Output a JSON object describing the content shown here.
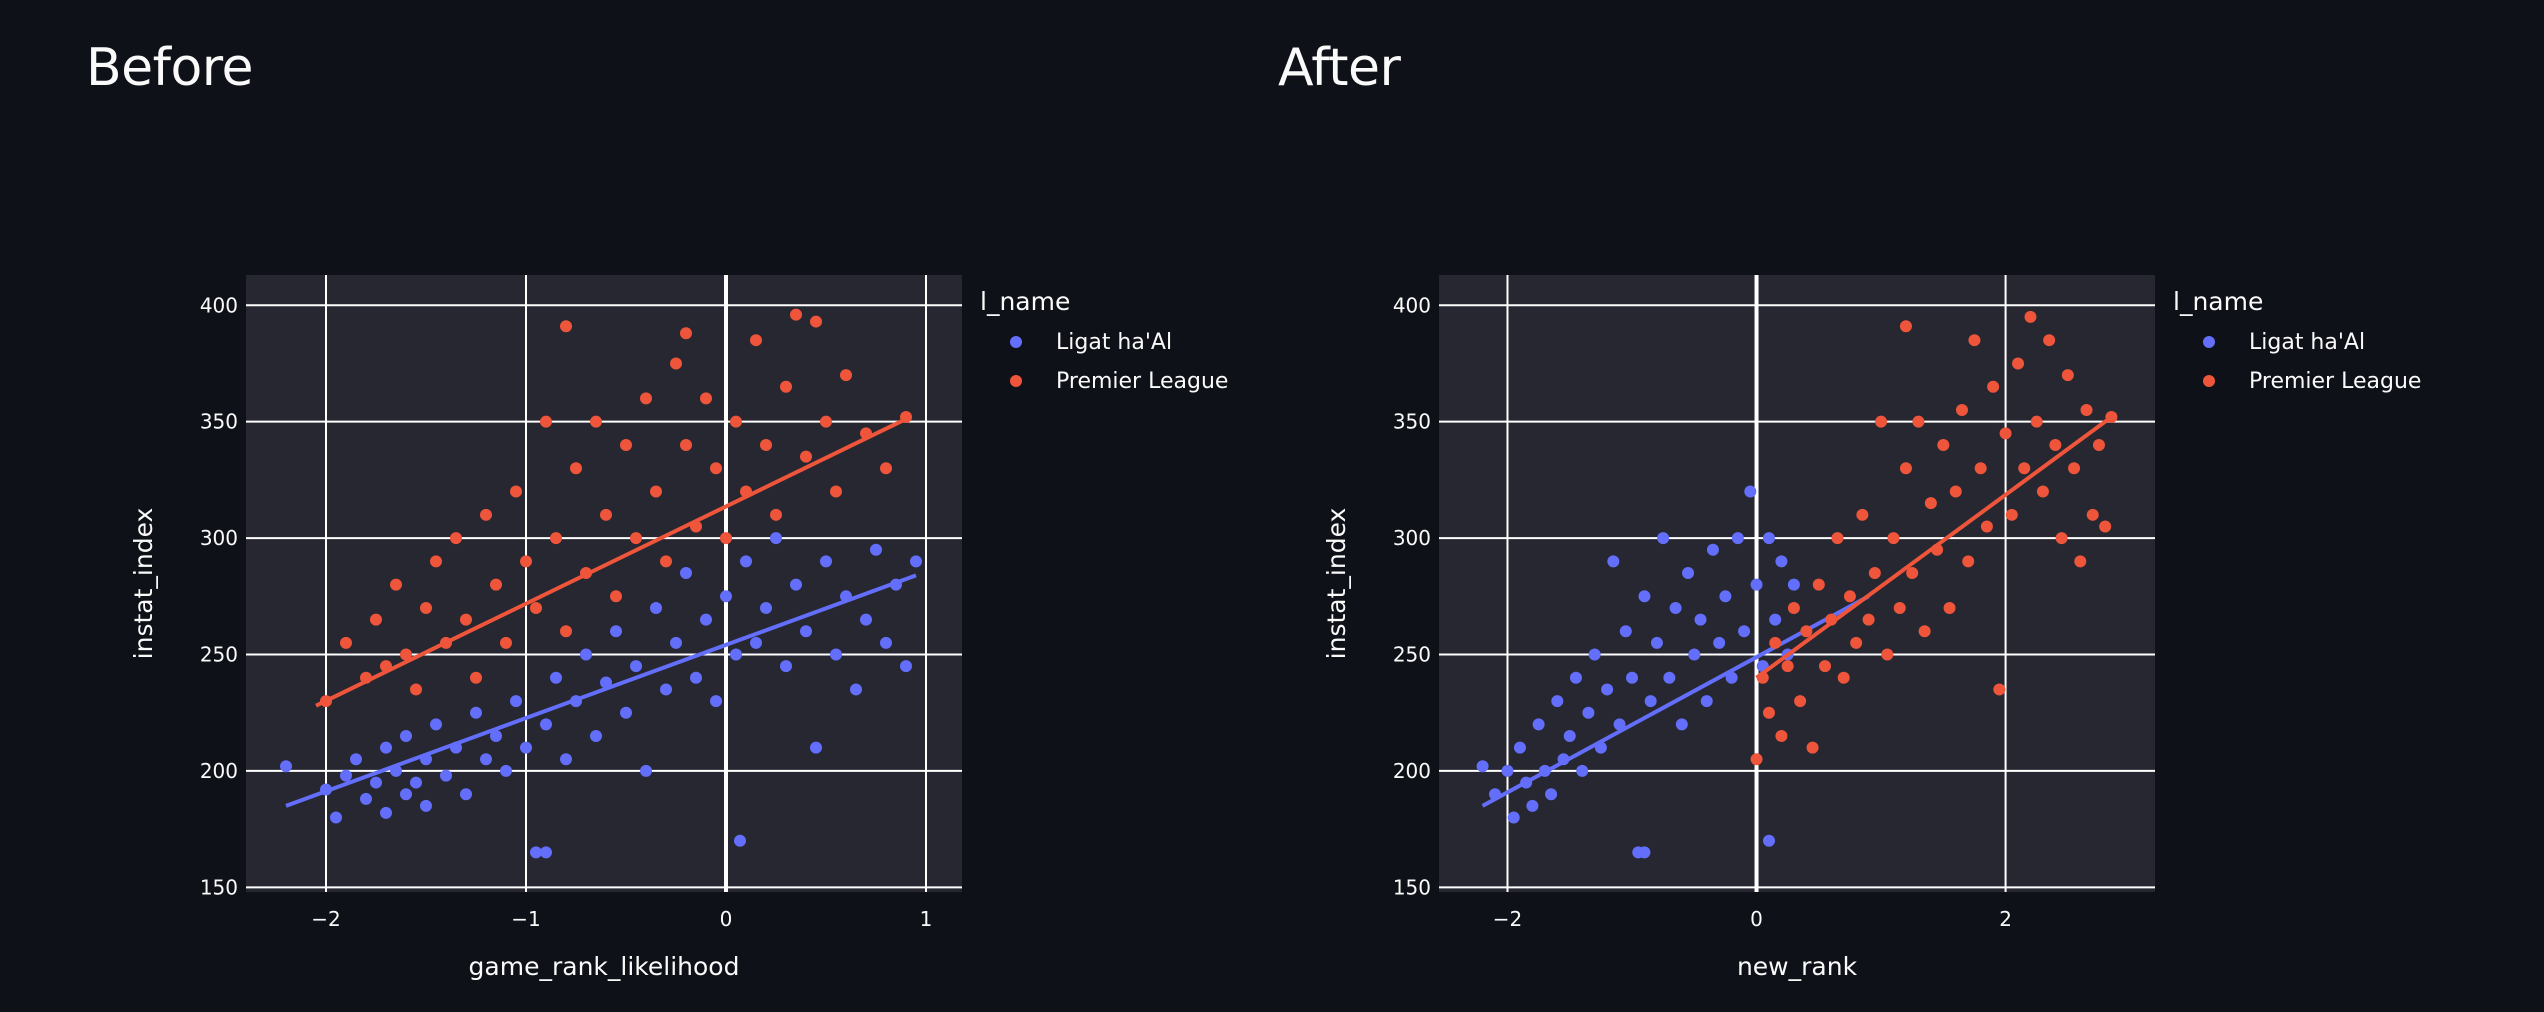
{
  "panels": [
    {
      "title": "Before"
    },
    {
      "title": "After"
    }
  ],
  "colors": {
    "background": "#0e1117",
    "plot_background": "#262730",
    "grid": "#ffffff",
    "ligat": "#636efa",
    "premier": "#ef553b"
  },
  "chart_data": [
    {
      "type": "scatter",
      "xlabel": "game_rank_likelihood",
      "ylabel": "instat_index",
      "xlim": [
        -2.4,
        1.18
      ],
      "ylim": [
        148,
        413
      ],
      "xticks": [
        -2,
        -1,
        0,
        1
      ],
      "xtick_labels": [
        "−2",
        "−1",
        "0",
        "1"
      ],
      "yticks": [
        150,
        200,
        250,
        300,
        350,
        400
      ],
      "legend": {
        "title": "l_name",
        "placement": "right"
      },
      "grid": true,
      "series": [
        {
          "name": "Ligat ha'Al",
          "color": "#636efa",
          "trendline": [
            [
              -2.2,
              185
            ],
            [
              0.95,
              284
            ]
          ],
          "points": [
            [
              -2.2,
              202
            ],
            [
              -2.0,
              192
            ],
            [
              -1.95,
              180
            ],
            [
              -1.9,
              198
            ],
            [
              -1.85,
              205
            ],
            [
              -1.8,
              188
            ],
            [
              -1.75,
              195
            ],
            [
              -1.7,
              182
            ],
            [
              -1.7,
              210
            ],
            [
              -1.65,
              200
            ],
            [
              -1.6,
              190
            ],
            [
              -1.6,
              215
            ],
            [
              -1.55,
              195
            ],
            [
              -1.5,
              205
            ],
            [
              -1.5,
              185
            ],
            [
              -1.45,
              220
            ],
            [
              -1.4,
              198
            ],
            [
              -1.35,
              210
            ],
            [
              -1.3,
              190
            ],
            [
              -1.25,
              225
            ],
            [
              -1.2,
              205
            ],
            [
              -1.15,
              215
            ],
            [
              -1.1,
              200
            ],
            [
              -1.05,
              230
            ],
            [
              -1.0,
              210
            ],
            [
              -0.95,
              165
            ],
            [
              -0.9,
              165
            ],
            [
              -0.9,
              220
            ],
            [
              -0.85,
              240
            ],
            [
              -0.8,
              205
            ],
            [
              -0.75,
              230
            ],
            [
              -0.7,
              250
            ],
            [
              -0.65,
              215
            ],
            [
              -0.6,
              238
            ],
            [
              -0.55,
              260
            ],
            [
              -0.5,
              225
            ],
            [
              -0.45,
              245
            ],
            [
              -0.4,
              200
            ],
            [
              -0.35,
              270
            ],
            [
              -0.3,
              235
            ],
            [
              -0.25,
              255
            ],
            [
              -0.2,
              285
            ],
            [
              -0.15,
              240
            ],
            [
              -0.1,
              265
            ],
            [
              -0.05,
              230
            ],
            [
              0.0,
              275
            ],
            [
              0.05,
              250
            ],
            [
              0.07,
              170
            ],
            [
              0.1,
              290
            ],
            [
              0.15,
              255
            ],
            [
              0.2,
              270
            ],
            [
              0.25,
              300
            ],
            [
              0.3,
              245
            ],
            [
              0.35,
              280
            ],
            [
              0.4,
              260
            ],
            [
              0.45,
              210
            ],
            [
              0.5,
              290
            ],
            [
              0.55,
              250
            ],
            [
              0.6,
              275
            ],
            [
              0.65,
              235
            ],
            [
              0.7,
              265
            ],
            [
              0.75,
              295
            ],
            [
              0.8,
              255
            ],
            [
              0.85,
              280
            ],
            [
              0.9,
              245
            ],
            [
              0.95,
              290
            ]
          ]
        },
        {
          "name": "Premier League",
          "color": "#ef553b",
          "trendline": [
            [
              -2.05,
              228
            ],
            [
              0.92,
              352
            ]
          ],
          "points": [
            [
              -2.0,
              230
            ],
            [
              -1.9,
              255
            ],
            [
              -1.8,
              240
            ],
            [
              -1.75,
              265
            ],
            [
              -1.7,
              245
            ],
            [
              -1.65,
              280
            ],
            [
              -1.6,
              250
            ],
            [
              -1.55,
              235
            ],
            [
              -1.5,
              270
            ],
            [
              -1.45,
              290
            ],
            [
              -1.4,
              255
            ],
            [
              -1.35,
              300
            ],
            [
              -1.3,
              265
            ],
            [
              -1.25,
              240
            ],
            [
              -1.2,
              310
            ],
            [
              -1.15,
              280
            ],
            [
              -1.1,
              255
            ],
            [
              -1.05,
              320
            ],
            [
              -1.0,
              290
            ],
            [
              -0.95,
              270
            ],
            [
              -0.9,
              350
            ],
            [
              -0.85,
              300
            ],
            [
              -0.8,
              260
            ],
            [
              -0.8,
              391
            ],
            [
              -0.75,
              330
            ],
            [
              -0.7,
              285
            ],
            [
              -0.65,
              350
            ],
            [
              -0.6,
              310
            ],
            [
              -0.55,
              275
            ],
            [
              -0.5,
              340
            ],
            [
              -0.45,
              300
            ],
            [
              -0.4,
              360
            ],
            [
              -0.35,
              320
            ],
            [
              -0.3,
              290
            ],
            [
              -0.25,
              375
            ],
            [
              -0.2,
              340
            ],
            [
              -0.2,
              388
            ],
            [
              -0.15,
              305
            ],
            [
              -0.1,
              360
            ],
            [
              -0.05,
              330
            ],
            [
              0.0,
              300
            ],
            [
              0.05,
              350
            ],
            [
              0.1,
              320
            ],
            [
              0.15,
              385
            ],
            [
              0.2,
              340
            ],
            [
              0.25,
              310
            ],
            [
              0.3,
              365
            ],
            [
              0.35,
              396
            ],
            [
              0.4,
              335
            ],
            [
              0.45,
              393
            ],
            [
              0.5,
              350
            ],
            [
              0.55,
              320
            ],
            [
              0.6,
              370
            ],
            [
              0.7,
              345
            ],
            [
              0.8,
              330
            ],
            [
              0.9,
              352
            ]
          ]
        }
      ]
    },
    {
      "type": "scatter",
      "xlabel": "new_rank",
      "ylabel": "instat_index",
      "xlim": [
        -2.55,
        3.2
      ],
      "ylim": [
        148,
        413
      ],
      "xticks": [
        -2,
        0,
        2
      ],
      "xtick_labels": [
        "−2",
        "0",
        "2"
      ],
      "yticks": [
        150,
        200,
        250,
        300,
        350,
        400
      ],
      "legend": {
        "title": "l_name",
        "placement": "right"
      },
      "grid": true,
      "series": [
        {
          "name": "Ligat ha'Al",
          "color": "#636efa",
          "trendline": [
            [
              -2.2,
              185
            ],
            [
              0.9,
              275
            ]
          ],
          "points": [
            [
              -2.2,
              202
            ],
            [
              -2.1,
              190
            ],
            [
              -2.0,
              200
            ],
            [
              -1.95,
              180
            ],
            [
              -1.9,
              210
            ],
            [
              -1.85,
              195
            ],
            [
              -1.8,
              185
            ],
            [
              -1.75,
              220
            ],
            [
              -1.7,
              200
            ],
            [
              -1.65,
              190
            ],
            [
              -1.6,
              230
            ],
            [
              -1.55,
              205
            ],
            [
              -1.5,
              215
            ],
            [
              -1.45,
              240
            ],
            [
              -1.4,
              200
            ],
            [
              -1.35,
              225
            ],
            [
              -1.3,
              250
            ],
            [
              -1.25,
              210
            ],
            [
              -1.2,
              235
            ],
            [
              -1.15,
              290
            ],
            [
              -1.1,
              220
            ],
            [
              -1.05,
              260
            ],
            [
              -1.0,
              240
            ],
            [
              -0.95,
              165
            ],
            [
              -0.9,
              165
            ],
            [
              -0.9,
              275
            ],
            [
              -0.85,
              230
            ],
            [
              -0.8,
              255
            ],
            [
              -0.75,
              300
            ],
            [
              -0.7,
              240
            ],
            [
              -0.65,
              270
            ],
            [
              -0.6,
              220
            ],
            [
              -0.55,
              285
            ],
            [
              -0.5,
              250
            ],
            [
              -0.45,
              265
            ],
            [
              -0.4,
              230
            ],
            [
              -0.35,
              295
            ],
            [
              -0.3,
              255
            ],
            [
              -0.25,
              275
            ],
            [
              -0.2,
              240
            ],
            [
              -0.15,
              300
            ],
            [
              -0.1,
              260
            ],
            [
              -0.05,
              320
            ],
            [
              0.0,
              280
            ],
            [
              0.05,
              245
            ],
            [
              0.1,
              170
            ],
            [
              0.1,
              300
            ],
            [
              0.15,
              265
            ],
            [
              0.2,
              290
            ],
            [
              0.25,
              250
            ],
            [
              0.3,
              280
            ]
          ]
        },
        {
          "name": "Premier League",
          "color": "#ef553b",
          "trendline": [
            [
              0.0,
              240
            ],
            [
              2.85,
              352
            ]
          ],
          "points": [
            [
              0.0,
              205
            ],
            [
              0.05,
              240
            ],
            [
              0.1,
              225
            ],
            [
              0.15,
              255
            ],
            [
              0.2,
              215
            ],
            [
              0.25,
              245
            ],
            [
              0.3,
              270
            ],
            [
              0.35,
              230
            ],
            [
              0.4,
              260
            ],
            [
              0.45,
              210
            ],
            [
              0.5,
              280
            ],
            [
              0.55,
              245
            ],
            [
              0.6,
              265
            ],
            [
              0.65,
              300
            ],
            [
              0.7,
              240
            ],
            [
              0.75,
              275
            ],
            [
              0.8,
              255
            ],
            [
              0.85,
              310
            ],
            [
              0.9,
              265
            ],
            [
              0.95,
              285
            ],
            [
              1.0,
              350
            ],
            [
              1.05,
              250
            ],
            [
              1.1,
              300
            ],
            [
              1.15,
              270
            ],
            [
              1.2,
              330
            ],
            [
              1.2,
              391
            ],
            [
              1.25,
              285
            ],
            [
              1.3,
              350
            ],
            [
              1.35,
              260
            ],
            [
              1.4,
              315
            ],
            [
              1.45,
              295
            ],
            [
              1.5,
              340
            ],
            [
              1.55,
              270
            ],
            [
              1.6,
              320
            ],
            [
              1.65,
              355
            ],
            [
              1.7,
              290
            ],
            [
              1.75,
              385
            ],
            [
              1.8,
              330
            ],
            [
              1.85,
              305
            ],
            [
              1.9,
              365
            ],
            [
              1.95,
              235
            ],
            [
              2.0,
              345
            ],
            [
              2.05,
              310
            ],
            [
              2.1,
              375
            ],
            [
              2.15,
              330
            ],
            [
              2.2,
              395
            ],
            [
              2.25,
              350
            ],
            [
              2.3,
              320
            ],
            [
              2.35,
              385
            ],
            [
              2.4,
              340
            ],
            [
              2.45,
              300
            ],
            [
              2.5,
              370
            ],
            [
              2.55,
              330
            ],
            [
              2.6,
              290
            ],
            [
              2.65,
              355
            ],
            [
              2.7,
              310
            ],
            [
              2.75,
              340
            ],
            [
              2.8,
              305
            ],
            [
              2.85,
              352
            ]
          ]
        }
      ]
    }
  ]
}
